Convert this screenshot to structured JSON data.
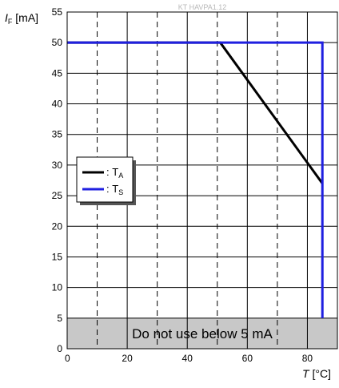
{
  "watermark": "KT HAVPA1.12",
  "chart_data": {
    "type": "line",
    "xlim": [
      0,
      90
    ],
    "ylim": [
      0,
      55
    ],
    "xticks": [
      0,
      20,
      40,
      60,
      80
    ],
    "yticks": [
      0,
      5,
      10,
      15,
      20,
      25,
      30,
      35,
      40,
      45,
      50,
      55
    ],
    "grid_solid_x": [
      20,
      40,
      60,
      80
    ],
    "grid_dashed_x": [
      10,
      30,
      50,
      70
    ],
    "grid_y": [
      5,
      10,
      15,
      20,
      25,
      30,
      35,
      40,
      45,
      50
    ],
    "ylabel": {
      "symbol": "I",
      "sub": "F",
      "unit": " [mA]"
    },
    "xlabel": {
      "symbol": "T",
      "unit": " [°C]"
    },
    "series": [
      {
        "name": "T",
        "sub": "A",
        "color": "#000000",
        "x": [
          0,
          51,
          85
        ],
        "y": [
          50,
          50,
          27
        ]
      },
      {
        "name": "T",
        "sub": "S",
        "color": "#1f1fe0",
        "x": [
          0,
          85,
          85
        ],
        "y": [
          50,
          50,
          5
        ]
      }
    ],
    "band": {
      "y0": 0,
      "y1": 5,
      "color": "#c8c8c8",
      "label": "Do not use below 5 mA"
    },
    "legend_position": "left"
  }
}
